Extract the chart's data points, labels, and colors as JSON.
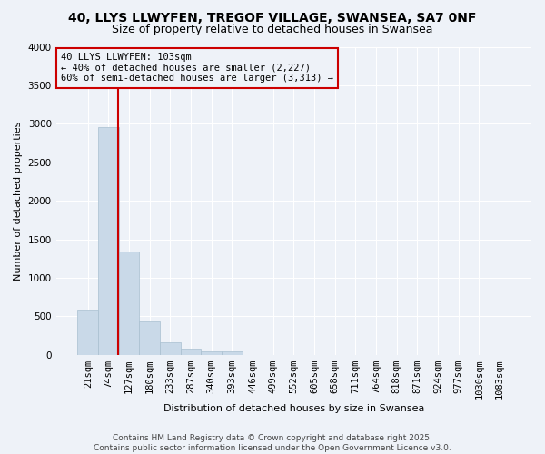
{
  "title_line1": "40, LLYS LLWYFEN, TREGOF VILLAGE, SWANSEA, SA7 0NF",
  "title_line2": "Size of property relative to detached houses in Swansea",
  "xlabel": "Distribution of detached houses by size in Swansea",
  "ylabel": "Number of detached properties",
  "categories": [
    "21sqm",
    "74sqm",
    "127sqm",
    "180sqm",
    "233sqm",
    "287sqm",
    "340sqm",
    "393sqm",
    "446sqm",
    "499sqm",
    "552sqm",
    "605sqm",
    "658sqm",
    "711sqm",
    "764sqm",
    "818sqm",
    "871sqm",
    "924sqm",
    "977sqm",
    "1030sqm",
    "1083sqm"
  ],
  "values": [
    590,
    2960,
    1340,
    430,
    160,
    75,
    45,
    40,
    0,
    0,
    0,
    0,
    0,
    0,
    0,
    0,
    0,
    0,
    0,
    0,
    0
  ],
  "bar_color": "#c9d9e8",
  "bar_edgecolor": "#a8bfd0",
  "vline_color": "#cc0000",
  "vline_x_index": 1.45,
  "annotation_text": "40 LLYS LLWYFEN: 103sqm\n← 40% of detached houses are smaller (2,227)\n60% of semi-detached houses are larger (3,313) →",
  "annotation_box_edgecolor": "#cc0000",
  "ylim": [
    0,
    4000
  ],
  "yticks": [
    0,
    500,
    1000,
    1500,
    2000,
    2500,
    3000,
    3500,
    4000
  ],
  "background_color": "#eef2f8",
  "grid_color": "#ffffff",
  "footer_line1": "Contains HM Land Registry data © Crown copyright and database right 2025.",
  "footer_line2": "Contains public sector information licensed under the Open Government Licence v3.0.",
  "title_fontsize": 10,
  "subtitle_fontsize": 9,
  "axis_label_fontsize": 8,
  "tick_fontsize": 7.5,
  "annotation_fontsize": 7.5,
  "footer_fontsize": 6.5
}
